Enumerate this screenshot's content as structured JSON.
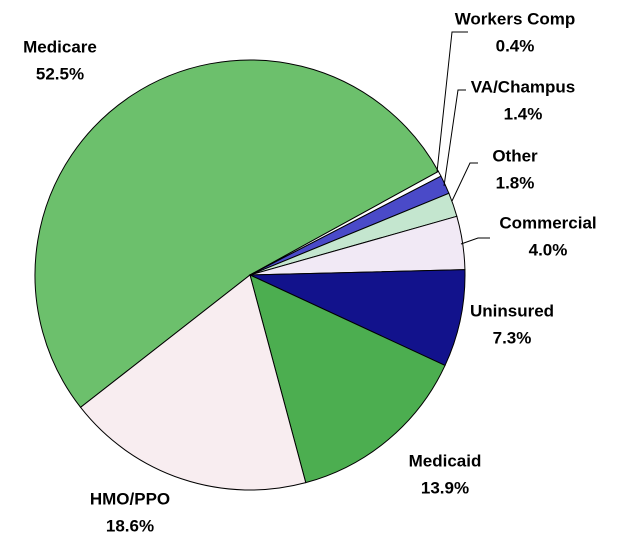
{
  "chart_data": {
    "type": "pie",
    "categories": [
      "Medicare",
      "Workers Comp",
      "VA/Champus",
      "Other",
      "Commercial",
      "Uninsured",
      "Medicaid",
      "HMO/PPO"
    ],
    "values": [
      52.5,
      0.4,
      1.4,
      1.8,
      4.0,
      7.3,
      13.9,
      18.6
    ],
    "value_labels": [
      "52.5%",
      "0.4%",
      "1.4%",
      "1.8%",
      "4.0%",
      "7.3%",
      "13.9%",
      "18.6%"
    ],
    "colors": [
      "#6cc06c",
      "#ffffff",
      "#4a4ac8",
      "#c4e6cf",
      "#f1e9f5",
      "#12128c",
      "#4cae50",
      "#f8edf0"
    ]
  }
}
